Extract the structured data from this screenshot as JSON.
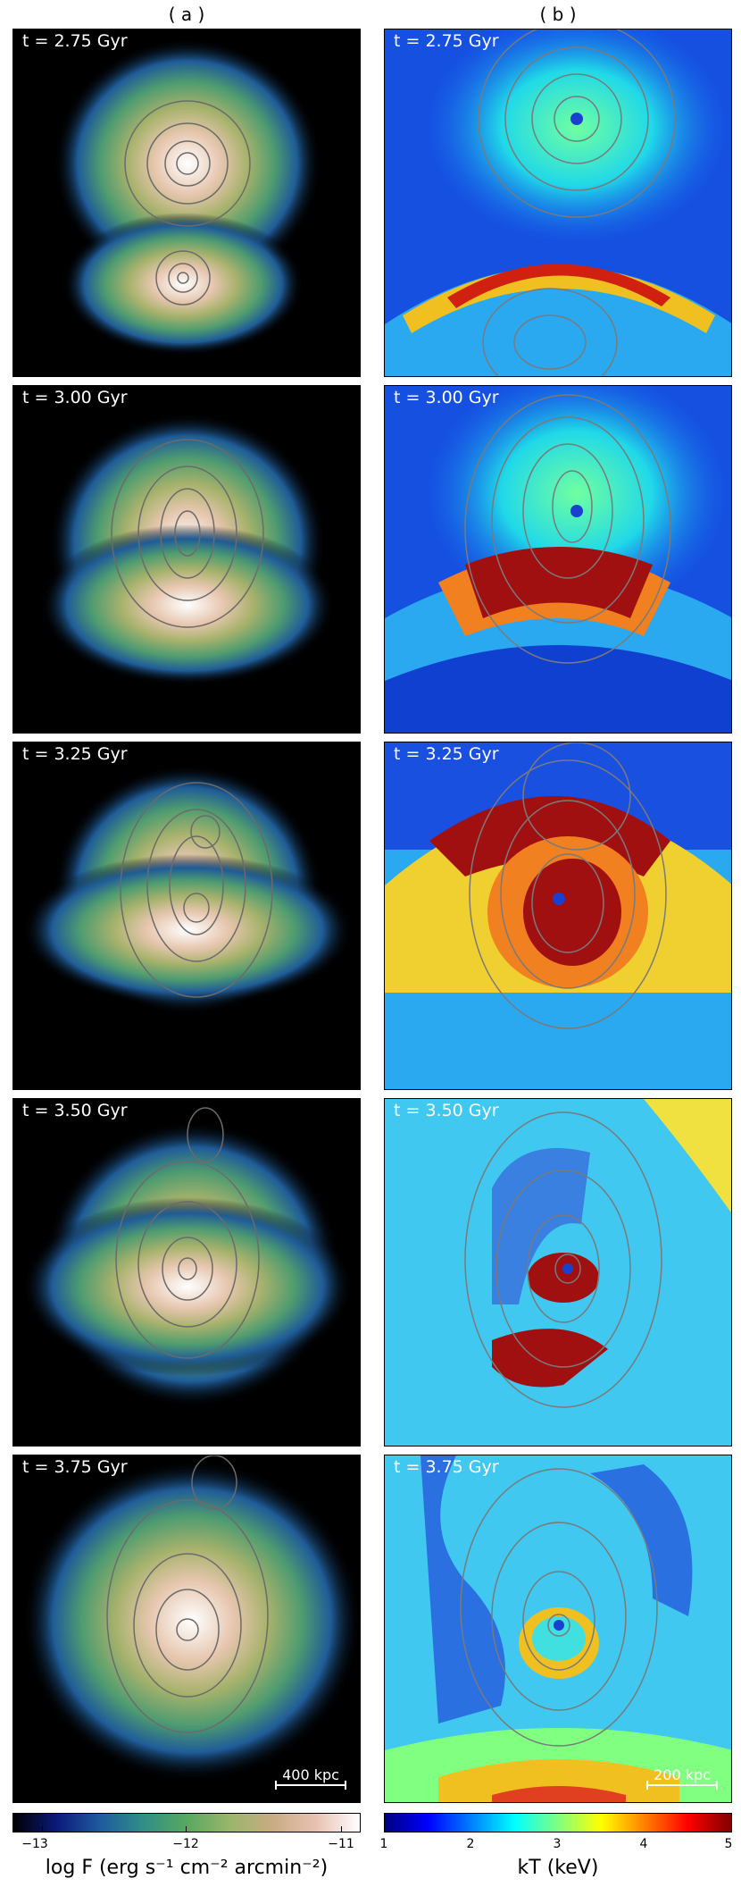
{
  "columns": [
    {
      "title": "( a )"
    },
    {
      "title": "( b )"
    }
  ],
  "time_labels": [
    "t = 2.75 Gyr",
    "t = 3.00 Gyr",
    "t = 3.25 Gyr",
    "t = 3.50 Gyr",
    "t = 3.75 Gyr"
  ],
  "scalebars": {
    "a": "400 kpc",
    "b": "200 kpc"
  },
  "colorbar_a": {
    "ticks": [
      "−13",
      "−12",
      "−11"
    ],
    "label": "log F (erg s⁻¹ cm⁻² arcmin⁻²)"
  },
  "colorbar_b": {
    "ticks": [
      "1",
      "2",
      "3",
      "4",
      "5"
    ],
    "label": "kT (keV)"
  }
}
